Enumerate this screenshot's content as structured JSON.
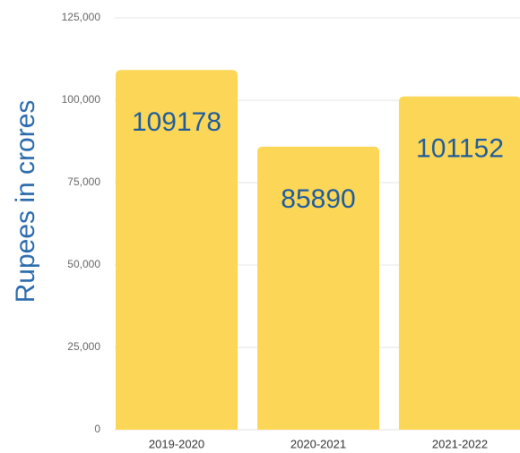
{
  "chart_data": {
    "type": "bar",
    "y_label": "Rupees in crores",
    "categories": [
      "2019-2020",
      "2020-2021",
      "2021-2022"
    ],
    "values": [
      109178,
      85890,
      101152
    ],
    "color": "#fcd757",
    "value_color": "#1f5c9c",
    "ylim": [
      0,
      125000
    ],
    "yticks": [
      0,
      {
        "value": 25000,
        "label": "25,000"
      },
      {
        "value": 50000,
        "label": "50,000"
      },
      {
        "value": 75000,
        "label": "75,000"
      },
      {
        "value": 100000,
        "label": "100,000"
      },
      {
        "value": 125000,
        "label": "125,000"
      }
    ],
    "grid": true
  }
}
